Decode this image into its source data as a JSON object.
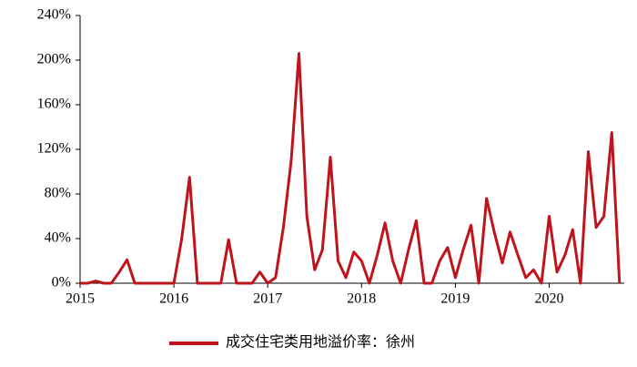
{
  "chart_data": {
    "type": "line",
    "x": [
      2015,
      2015.083,
      2015.167,
      2015.25,
      2015.333,
      2015.417,
      2015.5,
      2015.583,
      2015.667,
      2015.75,
      2015.833,
      2015.917,
      2016,
      2016.083,
      2016.167,
      2016.25,
      2016.333,
      2016.417,
      2016.5,
      2016.583,
      2016.667,
      2016.75,
      2016.833,
      2016.917,
      2017,
      2017.083,
      2017.167,
      2017.25,
      2017.333,
      2017.417,
      2017.5,
      2017.583,
      2017.667,
      2017.75,
      2017.833,
      2017.917,
      2018,
      2018.083,
      2018.167,
      2018.25,
      2018.333,
      2018.417,
      2018.5,
      2018.583,
      2018.667,
      2018.75,
      2018.833,
      2018.917,
      2019,
      2019.083,
      2019.167,
      2019.25,
      2019.333,
      2019.417,
      2019.5,
      2019.583,
      2019.667,
      2019.75,
      2019.833,
      2019.917,
      2020,
      2020.083,
      2020.167,
      2020.25,
      2020.333,
      2020.417,
      2020.5,
      2020.583,
      2020.667,
      2020.75
    ],
    "series": [
      {
        "name": "成交住宅类用地溢价率：徐州",
        "color": "#c0141c",
        "values": [
          0,
          0,
          2,
          0,
          0,
          10,
          21,
          0,
          0,
          0,
          0,
          0,
          0,
          40,
          95,
          0,
          0,
          0,
          0,
          39,
          0,
          0,
          0,
          10,
          0,
          5,
          50,
          110,
          206,
          60,
          12,
          30,
          113,
          20,
          5,
          28,
          20,
          0,
          25,
          54,
          20,
          0,
          30,
          56,
          0,
          0,
          20,
          32,
          5,
          30,
          52,
          0,
          76,
          45,
          18,
          46,
          25,
          5,
          12,
          0,
          60,
          10,
          25,
          48,
          0,
          118,
          50,
          60,
          135,
          0
        ]
      }
    ],
    "xlim": [
      2015,
      2020.8
    ],
    "xticks": [
      2015,
      2016,
      2017,
      2018,
      2019,
      2020
    ],
    "ylim": [
      0,
      240
    ],
    "yticks": [
      {
        "value": 0,
        "label": "0%"
      },
      {
        "value": 40,
        "label": "40%"
      },
      {
        "value": 80,
        "label": "80%"
      },
      {
        "value": 120,
        "label": "120%"
      },
      {
        "value": 160,
        "label": "160%"
      },
      {
        "value": 200,
        "label": "200%"
      },
      {
        "value": 240,
        "label": "240%"
      }
    ],
    "legend": "bottom"
  }
}
